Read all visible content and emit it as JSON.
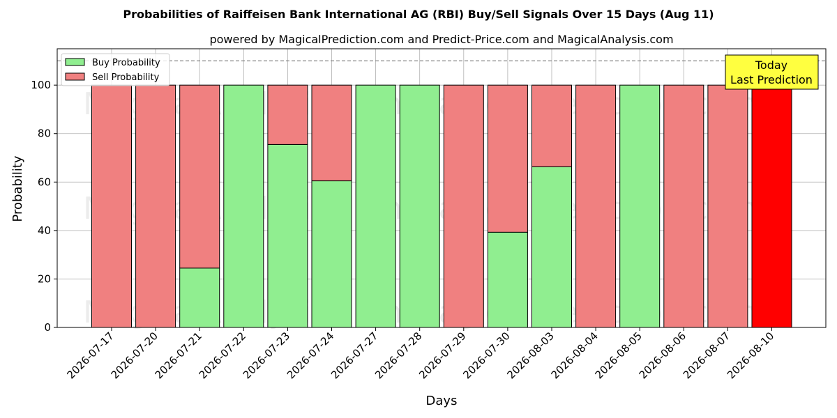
{
  "chart_data": {
    "type": "bar",
    "stacked": true,
    "title": "Probabilities of Raiffeisen Bank International AG (RBI) Buy/Sell Signals Over 15 Days (Aug 11)",
    "subtitle": "powered by MagicalPrediction.com and Predict-Price.com and MagicalAnalysis.com",
    "xlabel": "Days",
    "ylabel": "Probability",
    "ylim": [
      0,
      115
    ],
    "yticks": [
      0,
      20,
      40,
      60,
      80,
      100
    ],
    "threshold_line": 110,
    "grid": true,
    "legend_position": "top-left",
    "categories": [
      "2026-07-17",
      "2026-07-20",
      "2026-07-21",
      "2026-07-22",
      "2026-07-23",
      "2026-07-24",
      "2026-07-27",
      "2026-07-28",
      "2026-07-29",
      "2026-07-30",
      "2026-08-03",
      "2026-08-04",
      "2026-08-05",
      "2026-08-06",
      "2026-08-07",
      "2026-08-10"
    ],
    "series": [
      {
        "name": "Buy Probability",
        "color": "#90ee90",
        "values": [
          0,
          0,
          24.5,
          100,
          75.5,
          60.5,
          100,
          100,
          0,
          39.3,
          66.3,
          0,
          100,
          0,
          0,
          0
        ]
      },
      {
        "name": "Sell Probability",
        "color": "#f08080",
        "values": [
          100,
          100,
          75.5,
          0,
          24.5,
          39.5,
          0,
          0,
          100,
          60.7,
          33.7,
          100,
          0,
          100,
          100,
          100
        ]
      }
    ],
    "highlight": {
      "index": 15,
      "color": "#ff0000"
    },
    "annotation": {
      "lines": [
        "Today",
        "Last Prediction"
      ],
      "background": "#ffff40"
    },
    "watermarks": [
      "MagicalAnalysis.com",
      "MagicalPrediction.com"
    ]
  }
}
